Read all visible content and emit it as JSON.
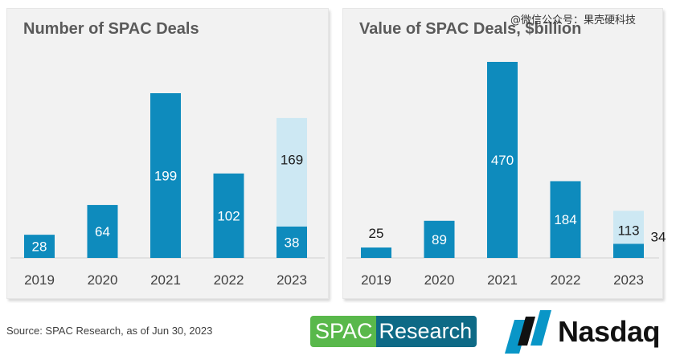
{
  "watermark": "@微信公众号：果壳硬科技",
  "source": "Source:  SPAC Research, as of Jun 30, 2023",
  "logos": {
    "spac_part1": "SPAC",
    "spac_part2": "Research",
    "nasdaq": "Nasdaq"
  },
  "colors": {
    "primary_bar": "#0e8bbd",
    "secondary_bar": "#cde8f3",
    "panel_bg": "#f2f2f2"
  },
  "chart_data": [
    {
      "type": "bar",
      "stacked": true,
      "title": "Number of SPAC Deals",
      "categories": [
        "2019",
        "2020",
        "2021",
        "2022",
        "2023"
      ],
      "series": [
        {
          "values": [
            28,
            64,
            199,
            102,
            38
          ],
          "labels": [
            "28",
            "64",
            "199",
            "102",
            "38"
          ],
          "color": "#0e8bbd"
        },
        {
          "values": [
            0,
            0,
            0,
            0,
            131
          ],
          "labels": [
            "",
            "",
            "",
            "",
            "169"
          ],
          "color": "#cde8f3"
        }
      ],
      "ylim": [
        0,
        199
      ],
      "grid": false,
      "legend": "none"
    },
    {
      "type": "bar",
      "stacked": true,
      "title": "Value of SPAC Deals, $billion",
      "categories": [
        "2019",
        "2020",
        "2021",
        "2022",
        "2023"
      ],
      "series": [
        {
          "values": [
            25,
            89,
            470,
            184,
            34
          ],
          "labels": [
            "25",
            "89",
            "470",
            "184",
            "34"
          ],
          "color": "#0e8bbd"
        },
        {
          "values": [
            0,
            0,
            0,
            0,
            79
          ],
          "labels": [
            "",
            "",
            "",
            "",
            "113"
          ],
          "color": "#cde8f3"
        }
      ],
      "ylim": [
        0,
        470
      ],
      "grid": false,
      "legend": "none"
    }
  ]
}
